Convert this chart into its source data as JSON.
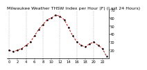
{
  "title": "Milwaukee Weather THSW Index per Hour (F) (Last 24 Hours)",
  "hours": [
    0,
    1,
    2,
    3,
    4,
    5,
    6,
    7,
    8,
    9,
    10,
    11,
    12,
    13,
    14,
    15,
    16,
    17,
    18,
    19,
    20,
    21,
    22,
    23
  ],
  "values": [
    20,
    18,
    20,
    22,
    26,
    30,
    38,
    46,
    52,
    58,
    60,
    64,
    62,
    58,
    48,
    38,
    30,
    26,
    24,
    28,
    30,
    26,
    22,
    12
  ],
  "line_color": "#dd0000",
  "marker_color": "#000000",
  "bg_color": "#ffffff",
  "grid_color": "#999999",
  "title_color": "#000000",
  "ylim": [
    10,
    70
  ],
  "ytick_values": [
    20,
    30,
    40,
    50,
    60,
    70
  ],
  "ytick_labels": [
    "20",
    "30",
    "40",
    "50",
    "60",
    "70"
  ],
  "xtick_positions": [
    0,
    2,
    4,
    6,
    8,
    10,
    12,
    14,
    16,
    18,
    20,
    22
  ],
  "xtick_labels": [
    "0",
    "2",
    "4",
    "6",
    "8",
    "10",
    "12",
    "14",
    "16",
    "18",
    "20",
    "22"
  ],
  "vgrid_positions": [
    0,
    4,
    8,
    12,
    16,
    20
  ],
  "title_fontsize": 4.5,
  "tick_fontsize": 3.8,
  "line_width": 0.7,
  "marker_size": 1.4
}
